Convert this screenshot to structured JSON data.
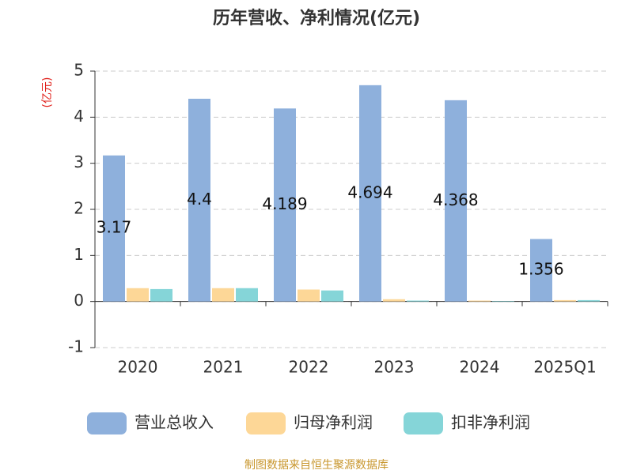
{
  "chart_data": {
    "type": "bar",
    "title": "历年营收、净利情况(亿元)",
    "y_label": "(亿元)",
    "source": "制图数据来自恒生聚源数据库",
    "categories": [
      "2020",
      "2021",
      "2022",
      "2023",
      "2024",
      "2025Q1"
    ],
    "series": [
      {
        "name": "营业总收入",
        "color": "#8eb0dc",
        "values": [
          3.17,
          4.4,
          4.189,
          4.694,
          4.368,
          1.356
        ],
        "labels": true
      },
      {
        "name": "归母净利润",
        "color": "#fdd797",
        "values": [
          0.29,
          0.29,
          0.26,
          0.05,
          0.02,
          0.03
        ]
      },
      {
        "name": "扣非净利润",
        "color": "#85d5d8",
        "values": [
          0.27,
          0.29,
          0.24,
          0.02,
          0.01,
          0.03
        ]
      }
    ],
    "ylim": [
      -1,
      5
    ],
    "yticks": [
      -1,
      0,
      1,
      2,
      3,
      4,
      5
    ],
    "grid": true
  }
}
